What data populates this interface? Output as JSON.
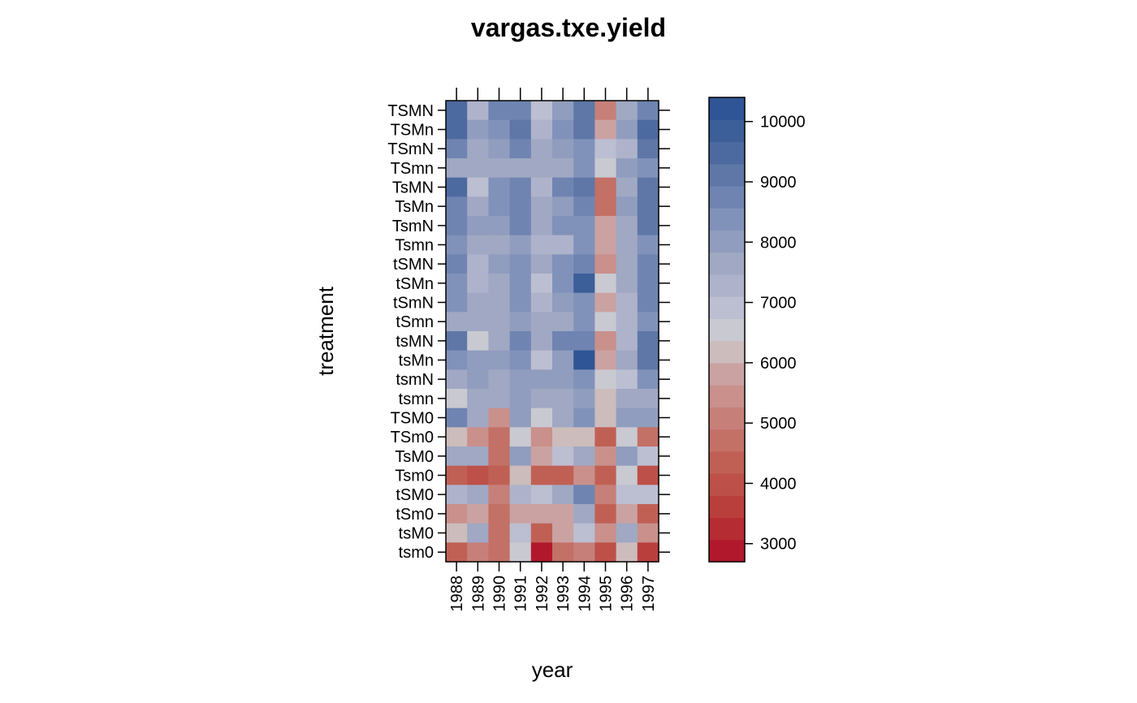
{
  "chart_data": {
    "type": "heatmap",
    "title": "vargas.txe.yield",
    "xlabel": "year",
    "ylabel": "treatment",
    "x": [
      "1988",
      "1989",
      "1990",
      "1991",
      "1992",
      "1993",
      "1994",
      "1995",
      "1996",
      "1997"
    ],
    "y": [
      "TSMN",
      "TSMn",
      "TSmN",
      "TSmn",
      "TsMN",
      "TsMn",
      "TsmN",
      "Tsmn",
      "tSMN",
      "tSMn",
      "tSmN",
      "tSmn",
      "tsMN",
      "tsMn",
      "tsmN",
      "tsmn",
      "TSM0",
      "TSm0",
      "TsM0",
      "Tsm0",
      "tSM0",
      "tSm0",
      "tsM0",
      "tsm0"
    ],
    "values": [
      [
        9400,
        7200,
        8700,
        8700,
        6800,
        8000,
        9000,
        5100,
        7500,
        8600
      ],
      [
        9500,
        8000,
        8300,
        9000,
        7100,
        8400,
        9100,
        5900,
        7900,
        9500
      ],
      [
        8700,
        7600,
        7900,
        8700,
        7500,
        8000,
        8400,
        6900,
        7400,
        9000
      ],
      [
        7800,
        7500,
        7600,
        7800,
        7700,
        7500,
        8300,
        6600,
        7900,
        8200
      ],
      [
        9600,
        7000,
        8500,
        8800,
        7100,
        8900,
        9100,
        4700,
        7700,
        9000
      ],
      [
        8800,
        7500,
        8300,
        8800,
        7500,
        8100,
        8800,
        4700,
        8100,
        9100
      ],
      [
        8700,
        8100,
        8100,
        8600,
        7500,
        8300,
        8300,
        5800,
        7700,
        9100
      ],
      [
        8500,
        7600,
        7600,
        8100,
        7200,
        7200,
        8400,
        5800,
        7600,
        8400
      ],
      [
        8800,
        7200,
        7900,
        8400,
        7500,
        8500,
        8900,
        5300,
        7700,
        8900
      ],
      [
        8500,
        7100,
        7500,
        8500,
        7000,
        8500,
        9800,
        6500,
        7700,
        8900
      ],
      [
        8500,
        7500,
        7500,
        8500,
        7200,
        7900,
        8500,
        5800,
        7100,
        8900
      ],
      [
        7600,
        7600,
        7600,
        7900,
        7800,
        7600,
        8400,
        6500,
        7200,
        8500
      ],
      [
        9000,
        6600,
        7800,
        8900,
        7500,
        8600,
        8600,
        5300,
        7300,
        9000
      ],
      [
        8400,
        8000,
        8000,
        8300,
        7000,
        8100,
        10400,
        5800,
        7600,
        9000
      ],
      [
        7600,
        8100,
        7800,
        8100,
        8100,
        8100,
        8500,
        6600,
        7000,
        8500
      ],
      [
        6400,
        7600,
        7600,
        8100,
        7600,
        7600,
        8100,
        6000,
        7600,
        7600
      ],
      [
        8700,
        7600,
        5500,
        8100,
        6500,
        7600,
        8500,
        6000,
        7900,
        8100
      ],
      [
        6000,
        5400,
        4800,
        6600,
        5300,
        6000,
        6000,
        4400,
        6600,
        4700
      ],
      [
        7600,
        7600,
        4800,
        8100,
        5700,
        6900,
        7500,
        5500,
        8100,
        7000
      ],
      [
        4400,
        4000,
        4500,
        6000,
        4300,
        4300,
        5300,
        4400,
        6700,
        4000
      ],
      [
        7200,
        7600,
        4900,
        7200,
        7000,
        7600,
        8900,
        5200,
        6900,
        7000
      ],
      [
        5400,
        5700,
        4600,
        5800,
        5800,
        5800,
        7500,
        4300,
        5800,
        4500
      ],
      [
        6000,
        7600,
        4600,
        7000,
        4500,
        5700,
        7000,
        5300,
        7600,
        5500
      ],
      [
        4400,
        5200,
        4600,
        6600,
        3000,
        4600,
        5000,
        3900,
        6000,
        3700
      ]
    ],
    "zlim": [
      2700,
      10400
    ],
    "colorbar_ticks": [
      3000,
      4000,
      5000,
      6000,
      7000,
      8000,
      9000,
      10000
    ],
    "palette": [
      "#B2182B",
      "#B52C32",
      "#B93F3C",
      "#BD5048",
      "#C06055",
      "#C37066",
      "#C68079",
      "#C9908C",
      "#CBA2A2",
      "#CDBCBC",
      "#C9C9D1",
      "#BCBED1",
      "#AEB3CB",
      "#A0A8C3",
      "#919DBE",
      "#8192BA",
      "#6F84B1",
      "#5E77A7",
      "#4D6AA0",
      "#3C5E99",
      "#2F5596"
    ],
    "grid": false,
    "legend": "colorbar-right"
  }
}
